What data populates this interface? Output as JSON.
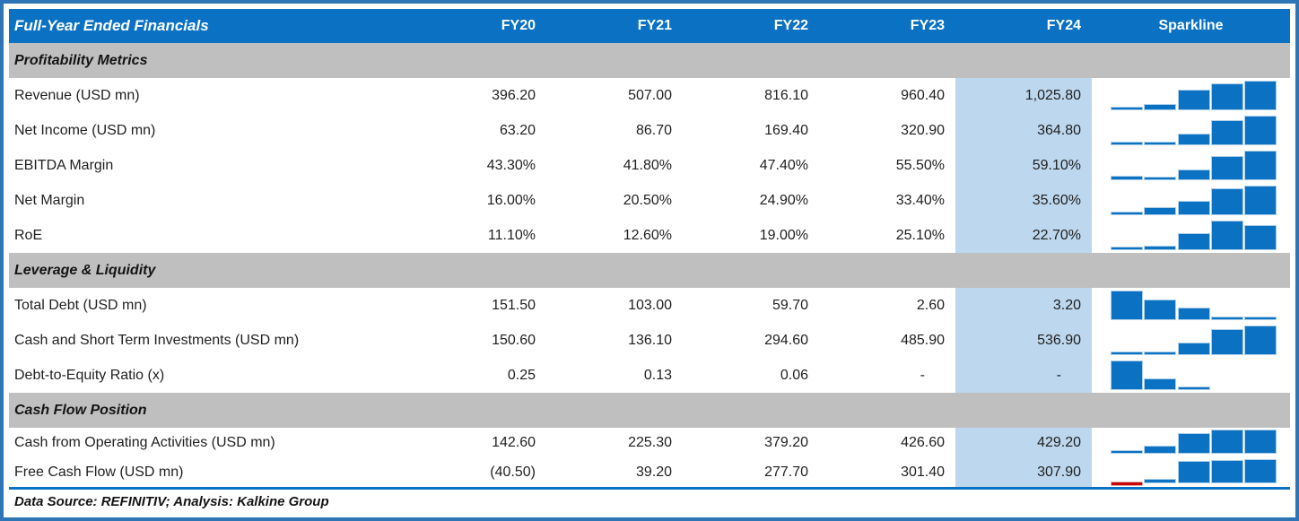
{
  "colors": {
    "header_blue": "#0B72C3",
    "frame_blue": "#2E75B6",
    "section_gray": "#BFBFBF",
    "fy24_highlight": "#BDD7EE",
    "sparkline_bar_blue": "#0B72C3",
    "sparkline_negative_red": "#C80000"
  },
  "table": {
    "title": "Full-Year Ended Financials",
    "columns": [
      "FY20",
      "FY21",
      "FY22",
      "FY23",
      "FY24"
    ],
    "sparkline_header": "Sparkline",
    "sections": [
      {
        "label": "Profitability Metrics",
        "rows": [
          {
            "label": "Revenue (USD mn)",
            "display": [
              "396.20",
              "507.00",
              "816.10",
              "960.40",
              "1,025.80"
            ],
            "spark": [
              396.2,
              507.0,
              816.1,
              960.4,
              1025.8
            ]
          },
          {
            "label": "Net Income (USD mn)",
            "display": [
              "63.20",
              "86.70",
              "169.40",
              "320.90",
              "364.80"
            ],
            "spark": [
              63.2,
              86.7,
              169.4,
              320.9,
              364.8
            ]
          },
          {
            "label": "EBITDA Margin",
            "display": [
              "43.30%",
              "41.80%",
              "47.40%",
              "55.50%",
              "59.10%"
            ],
            "spark": [
              43.3,
              41.8,
              47.4,
              55.5,
              59.1
            ]
          },
          {
            "label": "Net Margin",
            "display": [
              "16.00%",
              "20.50%",
              "24.90%",
              "33.40%",
              "35.60%"
            ],
            "spark": [
              16.0,
              20.5,
              24.9,
              33.4,
              35.6
            ]
          },
          {
            "label": "RoE",
            "display": [
              "11.10%",
              "12.60%",
              "19.00%",
              "25.10%",
              "22.70%"
            ],
            "spark": [
              11.1,
              12.6,
              19.0,
              25.1,
              22.7
            ]
          }
        ]
      },
      {
        "label": "Leverage & Liquidity",
        "rows": [
          {
            "label": "Total Debt (USD mn)",
            "display": [
              "151.50",
              "103.00",
              "59.70",
              "2.60",
              "3.20"
            ],
            "spark": [
              151.5,
              103.0,
              59.7,
              2.6,
              3.2
            ]
          },
          {
            "label": "Cash and Short Term Investments (USD mn)",
            "display": [
              "150.60",
              "136.10",
              "294.60",
              "485.90",
              "536.90"
            ],
            "spark": [
              150.6,
              136.1,
              294.6,
              485.9,
              536.9
            ]
          },
          {
            "label": "Debt-to-Equity Ratio (x)",
            "display": [
              "0.25",
              "0.13",
              "0.06",
              "-",
              "-"
            ],
            "spark": [
              0.25,
              0.13,
              0.06,
              null,
              null
            ]
          }
        ]
      },
      {
        "label": "Cash Flow Position",
        "rows": [
          {
            "label": "Cash from Operating Activities (USD mn)",
            "display": [
              "142.60",
              "225.30",
              "379.20",
              "426.60",
              "429.20"
            ],
            "spark": [
              142.6,
              225.3,
              379.2,
              426.6,
              429.2
            ]
          },
          {
            "label": "Free Cash Flow (USD mn)",
            "display": [
              "(40.50)",
              "39.20",
              "277.70",
              "301.40",
              "307.90"
            ],
            "spark": [
              -40.5,
              39.2,
              277.7,
              301.4,
              307.9
            ]
          }
        ]
      }
    ],
    "footer": "Data Source: REFINITIV; Analysis: Kalkine Group"
  },
  "chart_data": {
    "type": "table",
    "title": "Full-Year Ended Financials",
    "columns": [
      "FY20",
      "FY21",
      "FY22",
      "FY23",
      "FY24",
      "Sparkline"
    ],
    "legend_position": "none",
    "grid": false,
    "sections": [
      {
        "name": "Profitability Metrics",
        "series": [
          {
            "name": "Revenue (USD mn)",
            "values": [
              396.2,
              507.0,
              816.1,
              960.4,
              1025.8
            ],
            "sparkline": "bar"
          },
          {
            "name": "Net Income (USD mn)",
            "values": [
              63.2,
              86.7,
              169.4,
              320.9,
              364.8
            ],
            "sparkline": "bar"
          },
          {
            "name": "EBITDA Margin (%)",
            "values": [
              43.3,
              41.8,
              47.4,
              55.5,
              59.1
            ],
            "sparkline": "bar"
          },
          {
            "name": "Net Margin (%)",
            "values": [
              16.0,
              20.5,
              24.9,
              33.4,
              35.6
            ],
            "sparkline": "bar"
          },
          {
            "name": "RoE (%)",
            "values": [
              11.1,
              12.6,
              19.0,
              25.1,
              22.7
            ],
            "sparkline": "bar"
          }
        ]
      },
      {
        "name": "Leverage & Liquidity",
        "series": [
          {
            "name": "Total Debt (USD mn)",
            "values": [
              151.5,
              103.0,
              59.7,
              2.6,
              3.2
            ],
            "sparkline": "bar"
          },
          {
            "name": "Cash and Short Term Investments (USD mn)",
            "values": [
              150.6,
              136.1,
              294.6,
              485.9,
              536.9
            ],
            "sparkline": "bar"
          },
          {
            "name": "Debt-to-Equity Ratio (x)",
            "values": [
              0.25,
              0.13,
              0.06,
              null,
              null
            ],
            "sparkline": "bar"
          }
        ]
      },
      {
        "name": "Cash Flow Position",
        "series": [
          {
            "name": "Cash from Operating Activities (USD mn)",
            "values": [
              142.6,
              225.3,
              379.2,
              426.6,
              429.2
            ],
            "sparkline": "bar"
          },
          {
            "name": "Free Cash Flow (USD mn)",
            "values": [
              -40.5,
              39.2,
              277.7,
              301.4,
              307.9
            ],
            "sparkline": "bar",
            "negative_color": "#C80000"
          }
        ]
      }
    ],
    "footer": "Data Source: REFINITIV; Analysis: Kalkine Group"
  }
}
